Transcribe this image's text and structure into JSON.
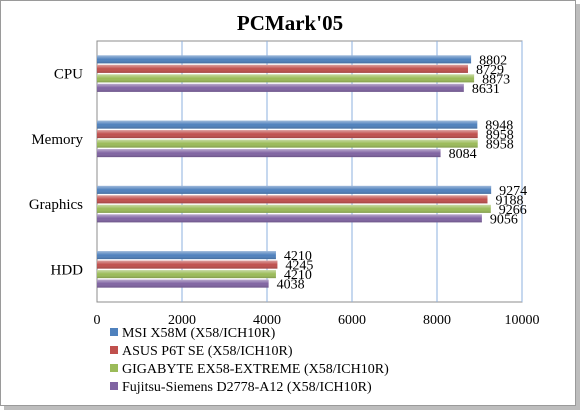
{
  "chart_data": {
    "type": "bar",
    "orientation": "horizontal",
    "title": "PCMark'05",
    "categories": [
      "CPU",
      "Memory",
      "Graphics",
      "HDD"
    ],
    "series": [
      {
        "name": "MSI X58M (X58/ICH10R)",
        "color": "#4F81BD",
        "values": [
          8802,
          8948,
          9274,
          4210
        ]
      },
      {
        "name": "ASUS P6T SE (X58/ICH10R)",
        "color": "#C0504D",
        "values": [
          8729,
          8958,
          9188,
          4245
        ]
      },
      {
        "name": "GIGABYTE EX58-EXTREME (X58/ICH10R)",
        "color": "#9BBB59",
        "values": [
          8873,
          8958,
          9266,
          4210
        ]
      },
      {
        "name": "Fujitsu-Siemens D2778-A12 (X58/ICH10R)",
        "color": "#8064A2",
        "values": [
          8631,
          8084,
          9056,
          4038
        ]
      }
    ],
    "xlim": [
      0,
      10000
    ],
    "xticks": [
      0,
      2000,
      4000,
      6000,
      8000,
      10000
    ],
    "grid": true,
    "legend_position": "bottom"
  }
}
